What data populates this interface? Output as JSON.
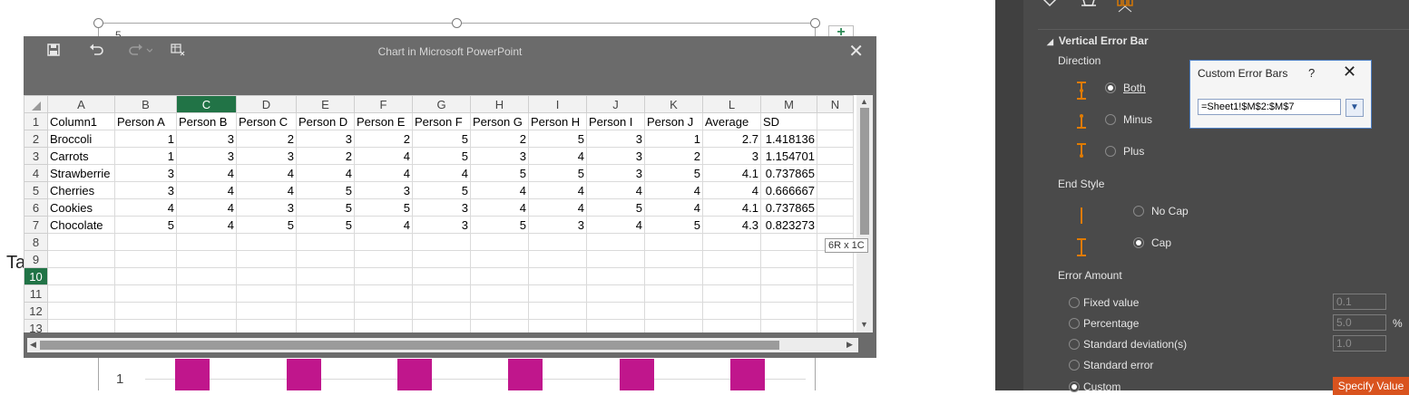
{
  "window": {
    "title": "Chart in Microsoft PowerPoint"
  },
  "toolbar": {
    "save_icon": "save-icon",
    "undo_icon": "undo-icon",
    "redo_icon": "redo-icon",
    "edit_data_icon": "edit-data-icon",
    "close_icon": "close-icon"
  },
  "columns": [
    "A",
    "B",
    "C",
    "D",
    "E",
    "F",
    "G",
    "H",
    "I",
    "J",
    "K",
    "L",
    "M",
    "N"
  ],
  "selected_column": "C",
  "selected_row": "10",
  "rows": [
    [
      "Column1",
      "Person A",
      "Person B",
      "Person C",
      "Person D",
      "Person E",
      "Person F",
      "Person G",
      "Person H",
      "Person I",
      "Person J",
      "Average",
      "SD"
    ],
    [
      "Broccoli",
      "1",
      "3",
      "2",
      "3",
      "2",
      "5",
      "2",
      "5",
      "3",
      "1",
      "2.7",
      "1.418136"
    ],
    [
      "Carrots",
      "1",
      "3",
      "3",
      "2",
      "4",
      "5",
      "3",
      "4",
      "3",
      "2",
      "3",
      "1.154701"
    ],
    [
      "Strawberrie",
      "3",
      "4",
      "4",
      "4",
      "4",
      "4",
      "5",
      "5",
      "3",
      "5",
      "4.1",
      "0.737865"
    ],
    [
      "Cherries",
      "3",
      "4",
      "4",
      "5",
      "3",
      "5",
      "4",
      "4",
      "4",
      "4",
      "4",
      "0.666667"
    ],
    [
      "Cookies",
      "4",
      "4",
      "3",
      "5",
      "5",
      "3",
      "4",
      "4",
      "5",
      "4",
      "4.1",
      "0.737865"
    ],
    [
      "Chocolate",
      "5",
      "4",
      "5",
      "5",
      "4",
      "3",
      "5",
      "3",
      "4",
      "5",
      "4.3",
      "0.823273"
    ]
  ],
  "row_numbers": [
    "1",
    "2",
    "3",
    "4",
    "5",
    "6",
    "7",
    "8",
    "9",
    "10",
    "11",
    "12",
    "13"
  ],
  "selection_tip": "6R x 1C",
  "slide": {
    "partial_text": "Ta",
    "y_tick": "1",
    "top_label": "5"
  },
  "pane": {
    "section_title": "Vertical Error Bar",
    "direction_label": "Direction",
    "direction_options": [
      "Both",
      "Minus",
      "Plus"
    ],
    "direction_selected": "Both",
    "end_style_label": "End Style",
    "end_style_options": [
      "No Cap",
      "Cap"
    ],
    "end_style_selected": "Cap",
    "error_amount_label": "Error Amount",
    "error_amount_options": [
      "Fixed value",
      "Percentage",
      "Standard deviation(s)",
      "Standard error",
      "Custom"
    ],
    "error_amount_selected": "Custom",
    "fixed_value": "0.1",
    "percentage_value": "5.0",
    "percent_sign": "%",
    "std_dev_value": "1.0",
    "specify_value_label": "Specify Value"
  },
  "dialog": {
    "title": "Custom Error Bars",
    "help": "?",
    "input_value": "=Sheet1!$M$2:$M$7"
  },
  "colors": {
    "accent": "#217346",
    "bar": "#c0168c",
    "specify_button": "#d9531e"
  }
}
